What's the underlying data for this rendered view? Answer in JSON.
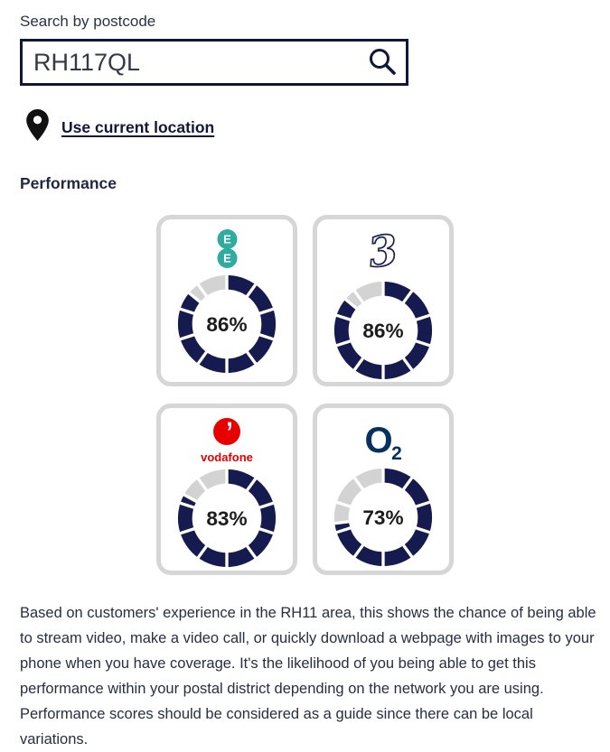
{
  "search": {
    "label": "Search by postcode",
    "value": "RH117QL",
    "icon": "search-icon"
  },
  "location_link": {
    "label": "Use current location",
    "icon": "location-pin-icon"
  },
  "performance": {
    "heading": "Performance",
    "gauge_segments": 10,
    "cards": [
      {
        "id": "ee",
        "network": "EE",
        "value": 86,
        "display": "86%"
      },
      {
        "id": "three",
        "network": "Three",
        "value": 86,
        "display": "86%"
      },
      {
        "id": "vodafone",
        "network": "Vodafone",
        "value": 83,
        "display": "83%"
      },
      {
        "id": "o2",
        "network": "O2",
        "value": 73,
        "display": "73%"
      }
    ]
  },
  "chart_data": {
    "type": "pie",
    "variant": "segmented-donut-gauge",
    "segments_per_gauge": 10,
    "series": [
      {
        "name": "EE",
        "value": 86
      },
      {
        "name": "Three",
        "value": 86
      },
      {
        "name": "Vodafone",
        "value": 83
      },
      {
        "name": "O2",
        "value": 73
      }
    ],
    "unit": "%"
  },
  "description": "Based on customers' experience in the RH11 area, this shows the chance of being able to stream video, make a video call, or quickly download a webpage with images to your phone when you have coverage. It's the likelihood of you being able to get this performance within your postal district depending on the network you are using. Performance scores should be considered as a guide since there can be local variations.",
  "colors": {
    "donut_fill": "#151b4e",
    "donut_track": "#d3d3d3",
    "percent_text": "#1c1c1c",
    "card_border": "#d6d6d6",
    "ee_teal": "#2fab9f",
    "three_outline": "#1b2150",
    "vodafone_red": "#e60000",
    "o2_blue": "#063061",
    "link_navy": "#10183a",
    "pin_black": "#111111"
  }
}
